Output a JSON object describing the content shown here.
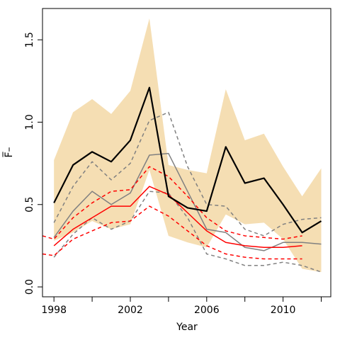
{
  "chart_data": {
    "type": "line",
    "title": "",
    "xlabel": "Year",
    "ylabel": "F̅–",
    "xlim": [
      1997.4,
      2012.5
    ],
    "ylim": [
      -0.06,
      1.69
    ],
    "x_ticks": [
      1998,
      2000,
      2002,
      2004,
      2006,
      2008,
      2010,
      2012
    ],
    "x_tick_labels": [
      "1998",
      "",
      "2002",
      "",
      "2006",
      "",
      "2010",
      ""
    ],
    "y_ticks": [
      0.0,
      0.5,
      1.0,
      1.5
    ],
    "y_tick_labels": [
      "0.0",
      "0.5",
      "1.0",
      "1.5"
    ],
    "grid": false,
    "legend": "none",
    "band": {
      "color": "#f5deb3",
      "x": [
        1998,
        1999,
        2000,
        2001,
        2002,
        2003,
        2004,
        2005,
        2006,
        2007,
        2008,
        2009,
        2010,
        2011,
        2012
      ],
      "upper": [
        0.77,
        1.06,
        1.14,
        1.05,
        1.19,
        1.63,
        0.74,
        0.71,
        0.69,
        1.2,
        0.89,
        0.93,
        0.73,
        0.55,
        0.72
      ],
      "lower": [
        0.28,
        0.33,
        0.4,
        0.35,
        0.38,
        0.71,
        0.31,
        0.27,
        0.24,
        0.44,
        0.38,
        0.39,
        0.29,
        0.11,
        0.09
      ]
    },
    "series": [
      {
        "color": "#808080",
        "width": 1.5,
        "dash": "",
        "x": [
          1998,
          1999,
          2000,
          2001,
          2002,
          2003,
          2004,
          2005,
          2006,
          2007,
          2008,
          2009,
          2010,
          2011,
          2012
        ],
        "values": [
          0.3,
          0.46,
          0.58,
          0.5,
          0.57,
          0.8,
          0.81,
          0.58,
          0.35,
          0.33,
          0.24,
          0.22,
          0.27,
          0.27,
          0.26
        ]
      },
      {
        "color": "#808080",
        "width": 1.5,
        "dash": "5,4",
        "x": [
          1998,
          1999,
          2000,
          2001,
          2002,
          2003,
          2004,
          2005,
          2006,
          2007,
          2008,
          2009,
          2010,
          2011,
          2012
        ],
        "values": [
          0.39,
          0.61,
          0.76,
          0.65,
          0.75,
          1.01,
          1.06,
          0.73,
          0.5,
          0.49,
          0.35,
          0.31,
          0.38,
          0.41,
          0.42
        ]
      },
      {
        "color": "#808080",
        "width": 1.5,
        "dash": "5,4",
        "x": [
          1998,
          1999,
          2000,
          2001,
          2002,
          2003,
          2004,
          2005,
          2006,
          2007,
          2008,
          2009,
          2010,
          2011,
          2012
        ],
        "values": [
          0.18,
          0.32,
          0.42,
          0.35,
          0.4,
          0.58,
          0.57,
          0.42,
          0.2,
          0.17,
          0.13,
          0.13,
          0.15,
          0.13,
          0.09
        ]
      },
      {
        "color": "#ff0000",
        "width": 1.5,
        "dash": "",
        "x": [
          1998,
          1999,
          2000,
          2001,
          2002,
          2003,
          2004,
          2005,
          2006,
          2007,
          2008,
          2009,
          2010,
          2011
        ],
        "values": [
          0.25,
          0.35,
          0.42,
          0.49,
          0.49,
          0.61,
          0.56,
          0.45,
          0.34,
          0.27,
          0.25,
          0.24,
          0.24,
          0.25
        ]
      },
      {
        "color": "#ff0000",
        "width": 1.5,
        "dash": "5,4",
        "x": [
          1997.4,
          1998,
          1999,
          2000,
          2001,
          2002,
          2003,
          2004,
          2005,
          2006,
          2007,
          2008,
          2009,
          2010,
          2011
        ],
        "values": [
          0.31,
          0.29,
          0.42,
          0.51,
          0.58,
          0.59,
          0.73,
          0.67,
          0.55,
          0.42,
          0.34,
          0.31,
          0.3,
          0.29,
          0.31
        ]
      },
      {
        "color": "#ff0000",
        "width": 1.5,
        "dash": "5,4",
        "x": [
          1997.4,
          1998,
          1999,
          2000,
          2001,
          2002,
          2003,
          2004,
          2005,
          2006,
          2007,
          2008,
          2009,
          2010,
          2011
        ],
        "values": [
          0.2,
          0.19,
          0.29,
          0.34,
          0.39,
          0.4,
          0.49,
          0.43,
          0.34,
          0.25,
          0.2,
          0.18,
          0.17,
          0.17,
          0.17
        ]
      },
      {
        "color": "#000000",
        "width": 2.2,
        "dash": "",
        "x": [
          1998,
          1999,
          2000,
          2001,
          2002,
          2003,
          2004,
          2005,
          2006,
          2007,
          2008,
          2009,
          2010,
          2011,
          2012
        ],
        "values": [
          0.51,
          0.74,
          0.82,
          0.76,
          0.89,
          1.21,
          0.55,
          0.48,
          0.46,
          0.85,
          0.63,
          0.66,
          0.5,
          0.33,
          0.4
        ]
      }
    ]
  }
}
